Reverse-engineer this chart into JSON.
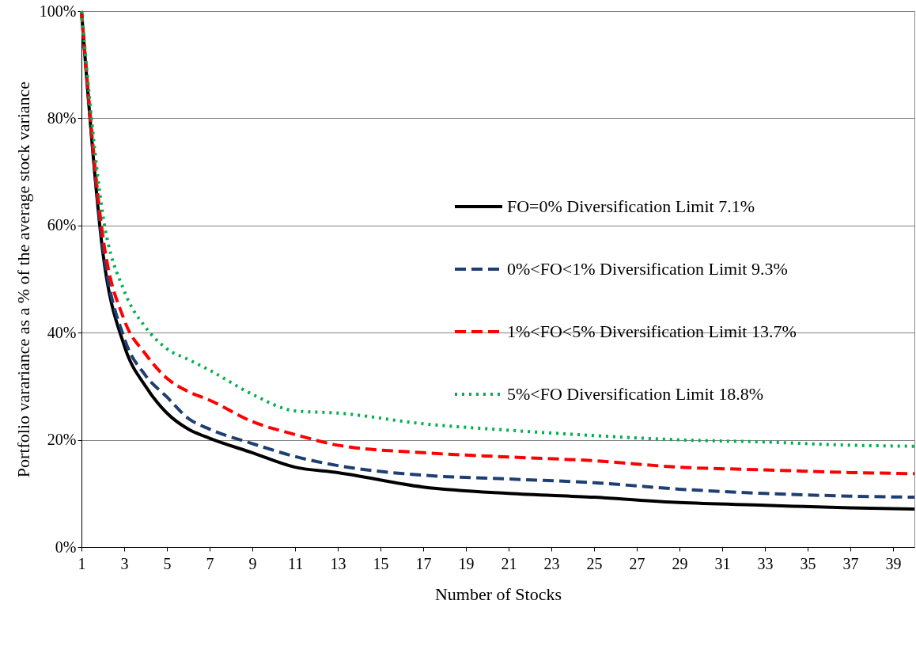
{
  "chart_data": {
    "type": "line",
    "xlabel": "Number of Stocks",
    "ylabel": "Portfolio varariance as a % of the average stock variance",
    "x": [
      1,
      2,
      3,
      4,
      5,
      6,
      7,
      9,
      11,
      13,
      17,
      21,
      25,
      29,
      33,
      37,
      40
    ],
    "xlim": [
      1,
      40
    ],
    "xticks": [
      1,
      3,
      5,
      7,
      9,
      11,
      13,
      15,
      17,
      19,
      21,
      23,
      25,
      27,
      29,
      31,
      33,
      35,
      37,
      39
    ],
    "ylim": [
      0,
      100
    ],
    "yticks": [
      {
        "value": 0,
        "label": "0%"
      },
      {
        "value": 20,
        "label": "20%"
      },
      {
        "value": 40,
        "label": "40%"
      },
      {
        "value": 60,
        "label": "60%"
      },
      {
        "value": 80,
        "label": "80%"
      },
      {
        "value": 100,
        "label": "100%"
      }
    ],
    "grid": "y",
    "legend": "right",
    "marker": "none",
    "series": [
      {
        "name": "FO=0% Diversification Limit 7.1%",
        "color": "#000000",
        "line_style": "solid",
        "values": [
          100,
          55,
          37.6,
          30,
          25,
          22,
          20.3,
          17.6,
          14.9,
          13.9,
          11.2,
          10,
          9.3,
          8.3,
          7.8,
          7.3,
          7.1
        ]
      },
      {
        "name": "0%<FO<1% Diversification Limit 9.3%",
        "color": "#1f3f73",
        "line_style": "dashed",
        "values": [
          100,
          56,
          39,
          32,
          28,
          24,
          22,
          19.3,
          16.9,
          15.2,
          13.4,
          12.7,
          12,
          10.8,
          10,
          9.5,
          9.3
        ]
      },
      {
        "name": "1%<FO<5% Diversification Limit 13.7%",
        "color": "#ff0000",
        "line_style": "dashed",
        "values": [
          100,
          58,
          42.4,
          36,
          31.5,
          29,
          27.4,
          23.4,
          21,
          19,
          17.6,
          16.8,
          16.1,
          14.9,
          14.4,
          13.9,
          13.7
        ]
      },
      {
        "name": "5%<FO Diversification Limit 18.8%",
        "color": "#00b050",
        "line_style": "dotted",
        "values": [
          100,
          62,
          47.8,
          41,
          37,
          35,
          33,
          28.5,
          25.4,
          25,
          23,
          21.8,
          20.8,
          20,
          19.6,
          19,
          18.8
        ]
      }
    ]
  }
}
